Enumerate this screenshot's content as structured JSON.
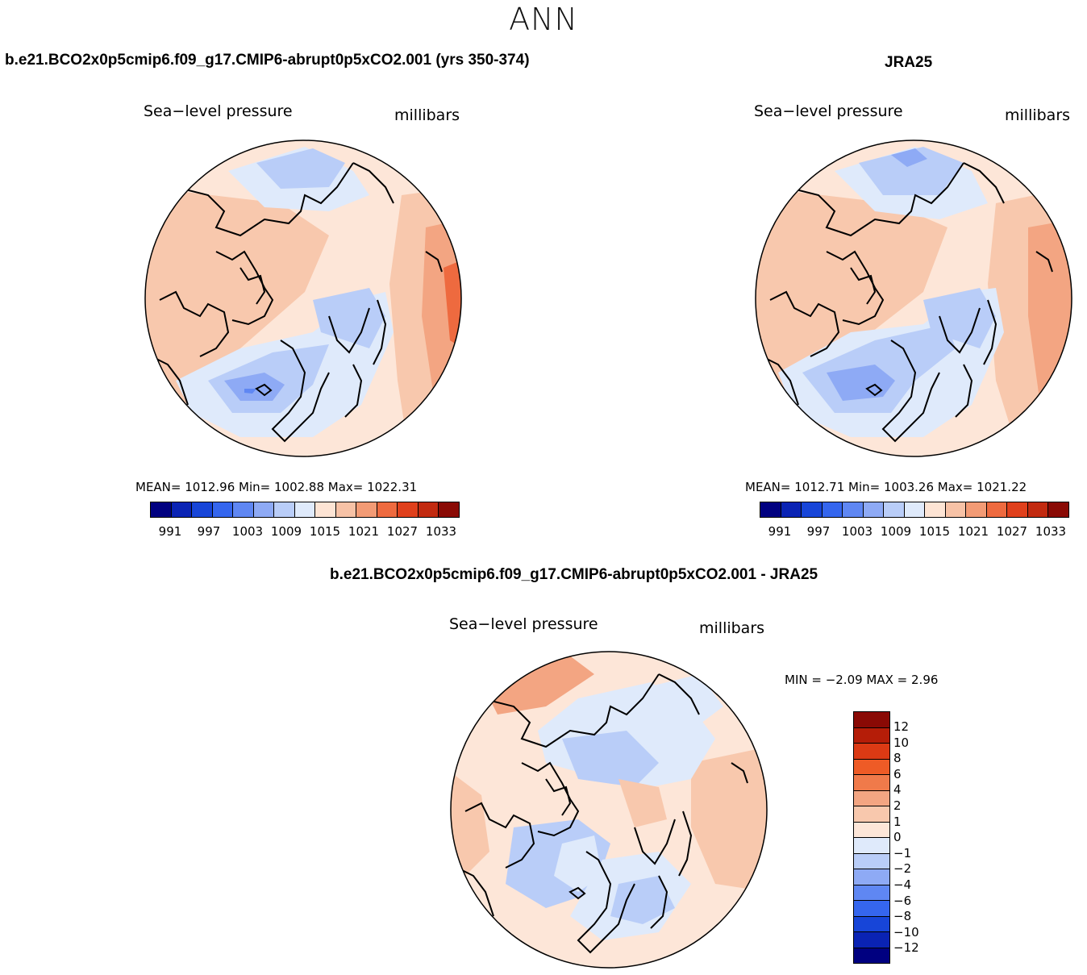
{
  "figure": {
    "season": "ANN",
    "field": "Sea−level pressure",
    "units": "millibars"
  },
  "panels": [
    {
      "title": "b.e21.BCO2x0p5cmip6.f09_g17.CMIP6-abrupt0p5xCO2.001 (yrs 350-374)",
      "stats": {
        "mean": "1012.96",
        "min": "1002.88",
        "max": "1022.31"
      },
      "stats_text": "MEAN= 1012.96   Min= 1002.88   Max= 1022.31"
    },
    {
      "title": "JRA25",
      "stats": {
        "mean": "1012.71",
        "min": "1003.26",
        "max": "1021.22"
      },
      "stats_text": "MEAN= 1012.71   Min= 1003.26   Max= 1021.22"
    }
  ],
  "difference": {
    "title": "b.e21.BCO2x0p5cmip6.f09_g17.CMIP6-abrupt0p5xCO2.001 - JRA25",
    "min": "−2.09",
    "max": "2.96",
    "stats_text": "MIN =    −2.09  MAX =     2.96"
  },
  "abs_colorbar": {
    "ticks": [
      "991",
      "997",
      "1003",
      "1009",
      "1015",
      "1021",
      "1027",
      "1033"
    ],
    "colors": [
      "#000080",
      "#0a23b4",
      "#1745d8",
      "#3566ee",
      "#5f87f3",
      "#8eaaf5",
      "#b9cdf8",
      "#dfeafb",
      "#fde4d4",
      "#f7c2a6",
      "#f39b75",
      "#ee6a3f",
      "#e0401c",
      "#c22a10",
      "#8a0a05"
    ]
  },
  "diff_colorbar": {
    "ticks": [
      "12",
      "10",
      "8",
      "6",
      "4",
      "2",
      "1",
      "0",
      "−1",
      "−2",
      "−4",
      "−6",
      "−8",
      "−10",
      "−12"
    ],
    "colors": [
      "#8a0a05",
      "#b51d08",
      "#dc3a14",
      "#ee5b26",
      "#f07a4a",
      "#f3a582",
      "#f8c8ad",
      "#fde6d8",
      "#dfeafb",
      "#b9cdf8",
      "#8eaaf5",
      "#5f87f3",
      "#3566ee",
      "#1745d8",
      "#0a23b4",
      "#000080"
    ]
  },
  "map_colors": {
    "ocean_base": "#fde6d8",
    "pink2": "#f8c8ad",
    "pink3": "#f3a582",
    "orange": "#f07a4a",
    "red": "#dc3a14",
    "blue0": "#dfeafb",
    "blue1": "#b9cdf8",
    "blue2": "#8eaaf5",
    "blue3": "#5f87f3",
    "blue4": "#3566ee"
  }
}
